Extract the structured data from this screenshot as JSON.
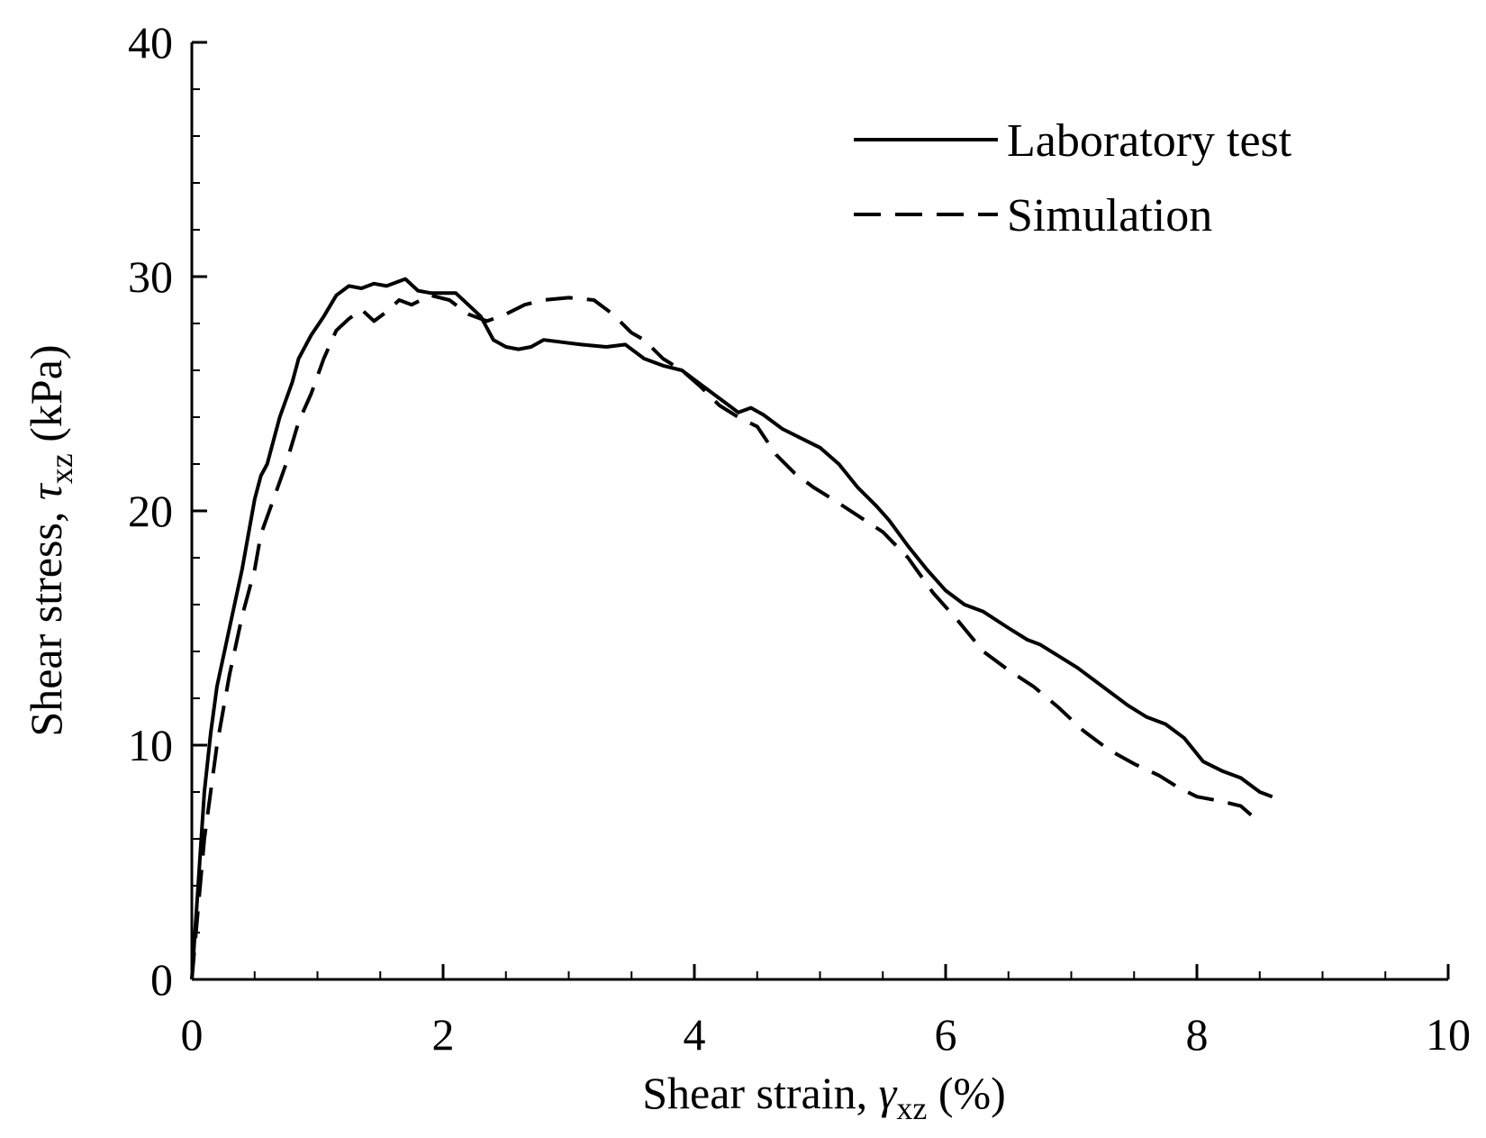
{
  "chart_data": {
    "type": "line",
    "title": "",
    "xlabel": {
      "main": "Shear strain, ",
      "symbol": "γ",
      "subscript": "xz",
      "unit": " (%)"
    },
    "ylabel": {
      "main": "Shear stress, ",
      "symbol": "τ",
      "subscript": "xz",
      "unit": " (kPa)"
    },
    "xlim": [
      0,
      10
    ],
    "ylim": [
      0,
      40
    ],
    "x_ticks": [
      0,
      2,
      4,
      6,
      8,
      10
    ],
    "y_ticks": [
      0,
      10,
      20,
      30,
      40
    ],
    "x_minor_step": 0.5,
    "y_minor_step": 2,
    "grid": false,
    "legend_position": "top-right",
    "series": [
      {
        "name": "Laboratory test",
        "style": "solid",
        "color": "#000000",
        "points": [
          [
            0,
            0
          ],
          [
            0.05,
            4
          ],
          [
            0.1,
            8
          ],
          [
            0.15,
            10.5
          ],
          [
            0.2,
            12.5
          ],
          [
            0.3,
            15
          ],
          [
            0.4,
            17.5
          ],
          [
            0.45,
            19
          ],
          [
            0.5,
            20.5
          ],
          [
            0.55,
            21.5
          ],
          [
            0.6,
            22
          ],
          [
            0.7,
            24
          ],
          [
            0.8,
            25.5
          ],
          [
            0.85,
            26.5
          ],
          [
            0.95,
            27.5
          ],
          [
            1.05,
            28.3
          ],
          [
            1.15,
            29.2
          ],
          [
            1.25,
            29.6
          ],
          [
            1.35,
            29.5
          ],
          [
            1.45,
            29.7
          ],
          [
            1.55,
            29.6
          ],
          [
            1.7,
            29.9
          ],
          [
            1.8,
            29.4
          ],
          [
            1.9,
            29.3
          ],
          [
            2.0,
            29.3
          ],
          [
            2.1,
            29.3
          ],
          [
            2.2,
            28.8
          ],
          [
            2.3,
            28.3
          ],
          [
            2.4,
            27.3
          ],
          [
            2.5,
            27.0
          ],
          [
            2.6,
            26.9
          ],
          [
            2.7,
            27.0
          ],
          [
            2.8,
            27.3
          ],
          [
            2.95,
            27.2
          ],
          [
            3.1,
            27.1
          ],
          [
            3.3,
            27.0
          ],
          [
            3.45,
            27.1
          ],
          [
            3.6,
            26.5
          ],
          [
            3.75,
            26.2
          ],
          [
            3.9,
            26.0
          ],
          [
            4.05,
            25.4
          ],
          [
            4.15,
            25.0
          ],
          [
            4.25,
            24.6
          ],
          [
            4.35,
            24.2
          ],
          [
            4.45,
            24.4
          ],
          [
            4.55,
            24.1
          ],
          [
            4.7,
            23.5
          ],
          [
            4.85,
            23.1
          ],
          [
            5.0,
            22.7
          ],
          [
            5.15,
            22.0
          ],
          [
            5.3,
            21.0
          ],
          [
            5.45,
            20.2
          ],
          [
            5.55,
            19.6
          ],
          [
            5.7,
            18.5
          ],
          [
            5.85,
            17.5
          ],
          [
            6.0,
            16.6
          ],
          [
            6.15,
            16.0
          ],
          [
            6.3,
            15.7
          ],
          [
            6.5,
            15.0
          ],
          [
            6.65,
            14.5
          ],
          [
            6.75,
            14.3
          ],
          [
            6.9,
            13.8
          ],
          [
            7.05,
            13.3
          ],
          [
            7.25,
            12.5
          ],
          [
            7.45,
            11.7
          ],
          [
            7.6,
            11.2
          ],
          [
            7.75,
            10.9
          ],
          [
            7.9,
            10.3
          ],
          [
            8.05,
            9.3
          ],
          [
            8.2,
            8.9
          ],
          [
            8.35,
            8.6
          ],
          [
            8.5,
            8.0
          ],
          [
            8.6,
            7.8
          ]
        ]
      },
      {
        "name": "Simulation",
        "style": "dashed",
        "color": "#000000",
        "points": [
          [
            0,
            0
          ],
          [
            0.1,
            6
          ],
          [
            0.2,
            10
          ],
          [
            0.3,
            13
          ],
          [
            0.4,
            15.5
          ],
          [
            0.5,
            17.5
          ],
          [
            0.55,
            19
          ],
          [
            0.65,
            20.5
          ],
          [
            0.75,
            22
          ],
          [
            0.85,
            23.8
          ],
          [
            0.95,
            25
          ],
          [
            1.05,
            26.5
          ],
          [
            1.15,
            27.7
          ],
          [
            1.25,
            28.2
          ],
          [
            1.35,
            28.6
          ],
          [
            1.45,
            28.1
          ],
          [
            1.55,
            28.5
          ],
          [
            1.65,
            29.0
          ],
          [
            1.75,
            28.8
          ],
          [
            1.9,
            29.2
          ],
          [
            2.05,
            29.0
          ],
          [
            2.2,
            28.4
          ],
          [
            2.35,
            28.1
          ],
          [
            2.5,
            28.4
          ],
          [
            2.65,
            28.8
          ],
          [
            2.8,
            29.0
          ],
          [
            3.0,
            29.1
          ],
          [
            3.2,
            29.0
          ],
          [
            3.35,
            28.4
          ],
          [
            3.5,
            27.6
          ],
          [
            3.6,
            27.3
          ],
          [
            3.75,
            26.5
          ],
          [
            3.9,
            26.0
          ],
          [
            4.05,
            25.3
          ],
          [
            4.2,
            24.5
          ],
          [
            4.35,
            24.0
          ],
          [
            4.5,
            23.6
          ],
          [
            4.65,
            22.4
          ],
          [
            4.8,
            21.6
          ],
          [
            4.95,
            21.0
          ],
          [
            5.1,
            20.5
          ],
          [
            5.3,
            19.8
          ],
          [
            5.5,
            19.1
          ],
          [
            5.7,
            18.0
          ],
          [
            5.9,
            16.5
          ],
          [
            6.1,
            15.3
          ],
          [
            6.3,
            14.0
          ],
          [
            6.5,
            13.2
          ],
          [
            6.7,
            12.5
          ],
          [
            6.9,
            11.6
          ],
          [
            7.1,
            10.6
          ],
          [
            7.3,
            9.8
          ],
          [
            7.5,
            9.2
          ],
          [
            7.7,
            8.7
          ],
          [
            7.85,
            8.2
          ],
          [
            8.0,
            7.8
          ],
          [
            8.2,
            7.6
          ],
          [
            8.35,
            7.4
          ],
          [
            8.5,
            6.7
          ]
        ]
      }
    ]
  }
}
